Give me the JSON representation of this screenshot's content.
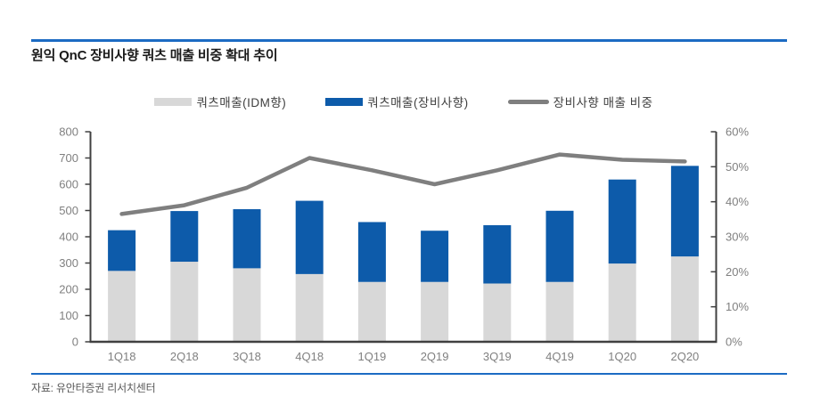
{
  "header": {
    "title": "원익 QnC 장비사향 쿼츠 매출 비중 확대 추이",
    "rule_color": "#1c6bc3"
  },
  "footer": {
    "source": "자료: 유안타증권 리서치센터",
    "rule_color": "#1c6bc3"
  },
  "colors": {
    "bar_idm": "#d8d8d8",
    "bar_equipment": "#0d5baa",
    "ratio_line": "#7f7f7f",
    "axis": "#404040",
    "tick_label": "#808080"
  },
  "chart_data": {
    "type": "bar",
    "subtype": "stacked-bars-with-line",
    "categories": [
      "1Q18",
      "2Q18",
      "3Q18",
      "4Q18",
      "1Q19",
      "2Q19",
      "3Q19",
      "4Q19",
      "1Q20",
      "2Q20"
    ],
    "series": [
      {
        "name": "쿼츠매출(IDM향)",
        "type": "bar",
        "stack": true,
        "color": "#d8d8d8",
        "values": [
          270,
          305,
          280,
          258,
          228,
          228,
          222,
          228,
          298,
          325
        ]
      },
      {
        "name": "쿼츠매출(장비사향)",
        "type": "bar",
        "stack": true,
        "color": "#0d5baa",
        "values": [
          155,
          193,
          225,
          279,
          228,
          195,
          222,
          271,
          320,
          345
        ]
      },
      {
        "name": "장비사향 매출 비중",
        "type": "line",
        "axis": "right",
        "color": "#7f7f7f",
        "values": [
          36.5,
          39,
          44,
          52.5,
          49,
          45,
          49,
          53.5,
          52,
          51.5
        ]
      }
    ],
    "stacked_totals": [
      425,
      498,
      505,
      537,
      456,
      423,
      444,
      499,
      618,
      670
    ],
    "left_axis": {
      "min": 0,
      "max": 800,
      "step": 100,
      "tick_labels": [
        "0",
        "100",
        "200",
        "300",
        "400",
        "500",
        "600",
        "700",
        "800"
      ]
    },
    "right_axis": {
      "min": 0,
      "max": 60,
      "step": 10,
      "suffix": "%",
      "tick_labels": [
        "0%",
        "10%",
        "20%",
        "30%",
        "40%",
        "50%",
        "60%"
      ]
    },
    "grid": false,
    "legend_position": "top",
    "title": "원익 QnC 장비사향 쿼츠 매출 비중 확대 추이"
  }
}
